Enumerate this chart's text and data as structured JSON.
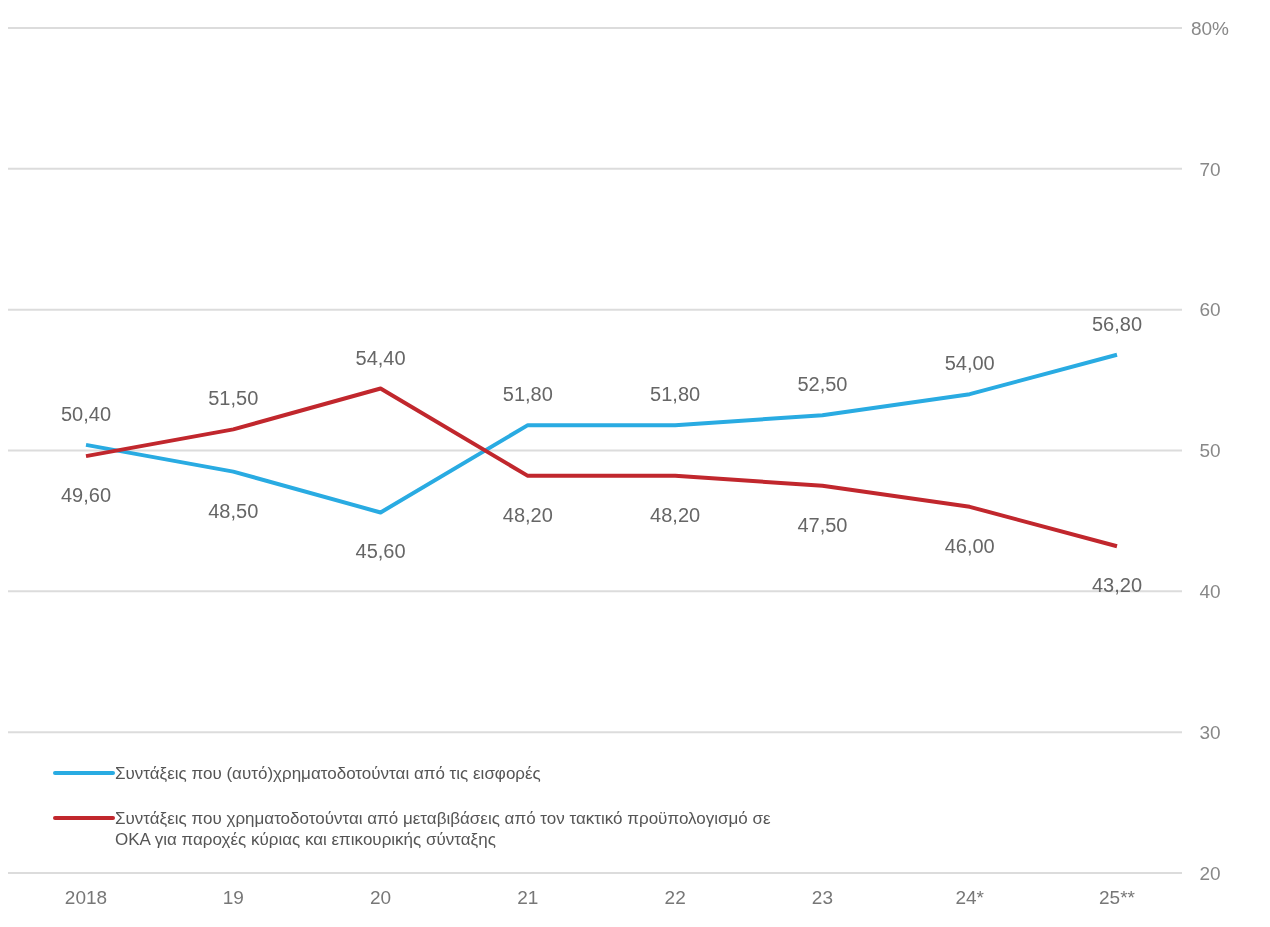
{
  "chart_data": {
    "type": "line",
    "categories": [
      "2018",
      "19",
      "20",
      "21",
      "22",
      "23",
      "24*",
      "25**"
    ],
    "series": [
      {
        "name": "Συντάξεις που (αυτό)χρηματοδοτούνται από τις εισφορές",
        "color": "#29abe2",
        "values": [
          50.4,
          48.5,
          45.6,
          51.8,
          51.8,
          52.5,
          54.0,
          56.8
        ],
        "value_labels": [
          "50,40",
          "48,50",
          "45,60",
          "51,80",
          "51,80",
          "52,50",
          "54,00",
          "56,80"
        ]
      },
      {
        "name": "Συντάξεις που χρηματοδοτούνται από μεταβιβάσεις από τον τακτικό προϋπολογισμό σε ΟΚΑ για παροχές κύριας και επικουρικής σύνταξης",
        "color": "#c1272d",
        "values": [
          49.6,
          51.5,
          54.4,
          48.2,
          48.2,
          47.5,
          46.0,
          43.2
        ],
        "value_labels": [
          "49,60",
          "51,50",
          "54,40",
          "48,20",
          "48,20",
          "47,50",
          "46,00",
          "43,20"
        ]
      }
    ],
    "ylim": [
      20,
      80
    ],
    "yticks": [
      20,
      30,
      40,
      50,
      60,
      70,
      {
        "value": 80,
        "label": "80%"
      }
    ],
    "grid": "y",
    "legend": "bottom left",
    "marker": "none",
    "line_style": "solid"
  }
}
